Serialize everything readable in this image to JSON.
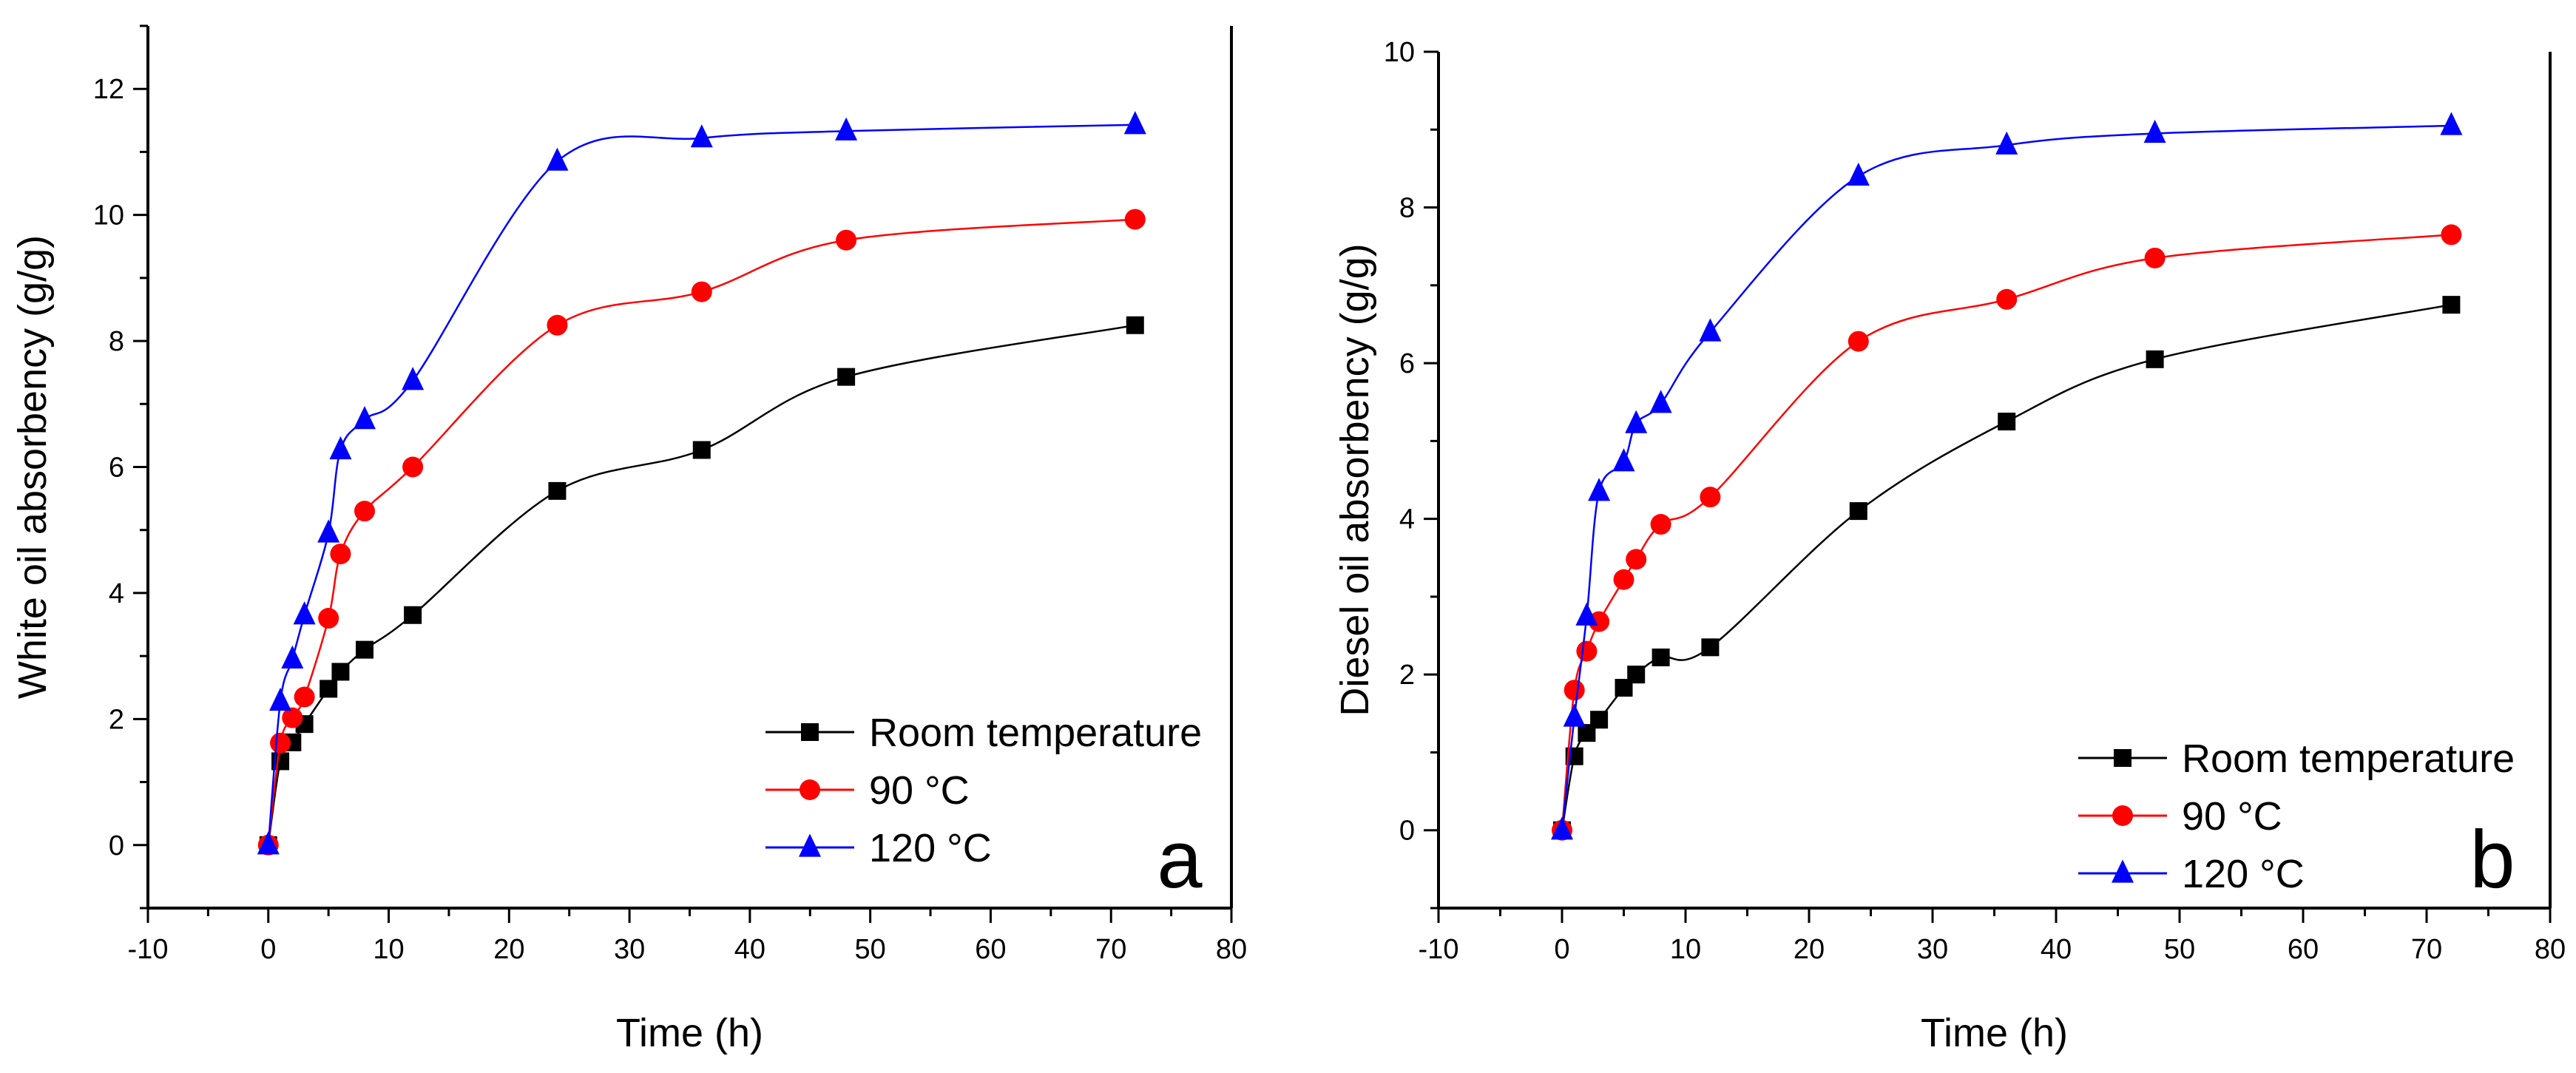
{
  "chart_data": [
    {
      "type": "line",
      "panel_label": "a",
      "title": "",
      "xlabel": "Time (h)",
      "ylabel": "White oil absorbency (g/g)",
      "xlim": [
        -10,
        80
      ],
      "ylim": [
        -1,
        13
      ],
      "xticks": [
        -10,
        0,
        10,
        20,
        30,
        40,
        50,
        60,
        70,
        80
      ],
      "yticks": [
        0,
        2,
        4,
        6,
        8,
        10,
        12
      ],
      "legend_position": "bottom-right",
      "grid": false,
      "series": [
        {
          "name": "Room temperature",
          "color": "#000000",
          "marker": "square",
          "x": [
            0,
            1,
            2,
            3,
            5,
            6,
            8,
            12,
            24,
            36,
            48,
            72
          ],
          "y": [
            0,
            1.33,
            1.63,
            1.92,
            2.48,
            2.75,
            3.1,
            3.65,
            5.62,
            6.27,
            7.43,
            8.25
          ]
        },
        {
          "name": "90 °C",
          "color": "#ff0000",
          "marker": "circle",
          "x": [
            0,
            1,
            2,
            3,
            5,
            6,
            8,
            12,
            24,
            36,
            48,
            72
          ],
          "y": [
            0,
            1.62,
            2.02,
            2.35,
            3.6,
            4.62,
            5.3,
            6.0,
            8.25,
            8.78,
            9.6,
            9.93
          ]
        },
        {
          "name": "120 °C",
          "color": "#0000ff",
          "marker": "triangle",
          "x": [
            0,
            1,
            2,
            3,
            5,
            6,
            8,
            12,
            24,
            36,
            48,
            72
          ],
          "y": [
            0,
            2.28,
            2.95,
            3.65,
            4.95,
            6.27,
            6.75,
            7.37,
            10.85,
            11.22,
            11.33,
            11.43
          ]
        }
      ]
    },
    {
      "type": "line",
      "panel_label": "b",
      "title": "",
      "xlabel": "Time (h)",
      "ylabel": "Diesel oil absorbency (g/g)",
      "xlim": [
        -10,
        80
      ],
      "ylim": [
        -1,
        10
      ],
      "xticks": [
        -10,
        0,
        10,
        20,
        30,
        40,
        50,
        60,
        70,
        80
      ],
      "yticks": [
        0,
        2,
        4,
        6,
        8,
        10
      ],
      "legend_position": "bottom-right",
      "grid": false,
      "series": [
        {
          "name": "Room temperature",
          "color": "#000000",
          "marker": "square",
          "x": [
            0,
            1,
            2,
            3,
            5,
            6,
            8,
            12,
            24,
            36,
            48,
            72
          ],
          "y": [
            0,
            0.95,
            1.25,
            1.42,
            1.83,
            2.0,
            2.22,
            2.35,
            4.1,
            5.25,
            6.05,
            6.75
          ]
        },
        {
          "name": "90 °C",
          "color": "#ff0000",
          "marker": "circle",
          "x": [
            0,
            1,
            2,
            3,
            5,
            6,
            8,
            12,
            24,
            36,
            48,
            72
          ],
          "y": [
            0,
            1.8,
            2.3,
            2.68,
            3.22,
            3.48,
            3.93,
            4.28,
            6.28,
            6.82,
            7.35,
            7.65
          ]
        },
        {
          "name": "120 °C",
          "color": "#0000ff",
          "marker": "triangle",
          "x": [
            0,
            1,
            2,
            3,
            5,
            6,
            8,
            12,
            24,
            36,
            48,
            72
          ],
          "y": [
            0,
            1.45,
            2.75,
            4.35,
            4.73,
            5.22,
            5.48,
            6.4,
            8.4,
            8.8,
            8.95,
            9.05
          ]
        }
      ]
    }
  ]
}
